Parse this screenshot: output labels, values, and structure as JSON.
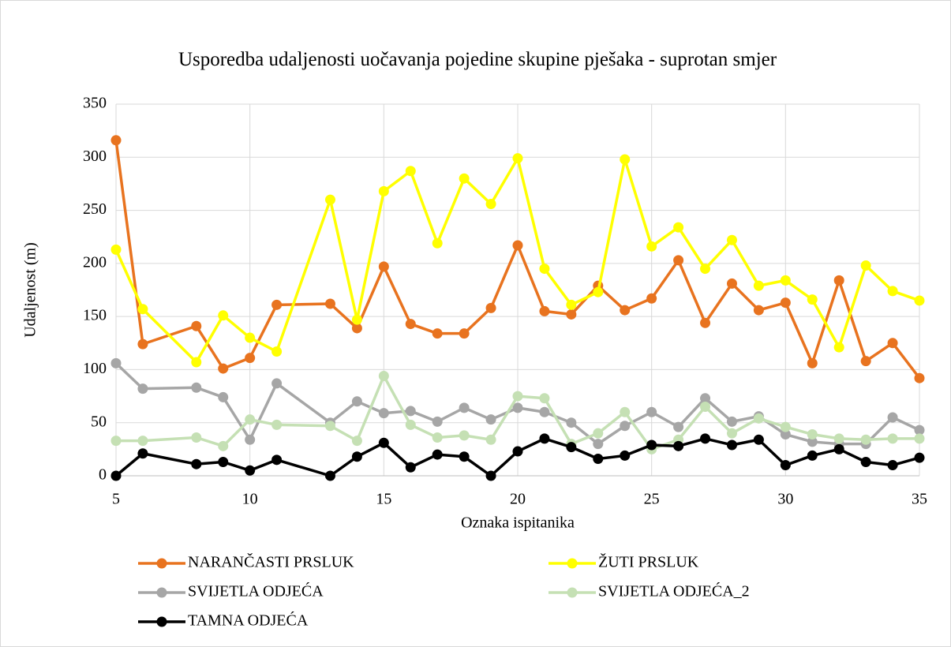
{
  "chart_data": {
    "type": "line",
    "title": "Usporedba udaljenosti uočavanja pojedine skupine pješaka - suprotan smjer",
    "x_label": "Oznaka ispitanika",
    "y_label": "Udaljenost (m)",
    "x": [
      5,
      6,
      8,
      9,
      10,
      11,
      13,
      14,
      15,
      16,
      17,
      18,
      19,
      20,
      21,
      22,
      23,
      24,
      25,
      26,
      27,
      28,
      29,
      30,
      31,
      32,
      33,
      34,
      35
    ],
    "series": [
      {
        "name": "NARANČASTI PRSLUK",
        "color": "#e8731f",
        "values": [
          316,
          124,
          141,
          101,
          111,
          161,
          162,
          139,
          197,
          143,
          134,
          134,
          158,
          217,
          155,
          152,
          179,
          156,
          167,
          203,
          144,
          181,
          156,
          163,
          106,
          184,
          108,
          125,
          92
        ]
      },
      {
        "name": "ŽUTI PRSLUK",
        "color": "#ffff00",
        "values": [
          213,
          157,
          107,
          151,
          130,
          117,
          260,
          147,
          268,
          287,
          219,
          280,
          256,
          299,
          195,
          161,
          173,
          298,
          216,
          234,
          195,
          222,
          179,
          184,
          166,
          121,
          198,
          174,
          165
        ]
      },
      {
        "name": "SVIJETLA ODJEĆA",
        "color": "#a6a6a6",
        "values": [
          106,
          82,
          83,
          74,
          34,
          87,
          50,
          70,
          59,
          61,
          51,
          64,
          53,
          64,
          60,
          50,
          30,
          47,
          60,
          46,
          73,
          51,
          56,
          39,
          32,
          30,
          30,
          55,
          43
        ]
      },
      {
        "name": "SVIJETLA ODJEĆA_2",
        "color": "#c5e0b4",
        "values": [
          33,
          33,
          36,
          28,
          53,
          48,
          47,
          33,
          94,
          48,
          36,
          38,
          34,
          75,
          73,
          30,
          40,
          60,
          25,
          34,
          65,
          40,
          54,
          46,
          39,
          35,
          34,
          35,
          35
        ]
      },
      {
        "name": "TAMNA ODJEĆA",
        "color": "#000000",
        "values": [
          0,
          21,
          11,
          13,
          5,
          15,
          0,
          18,
          31,
          8,
          20,
          18,
          0,
          23,
          35,
          27,
          16,
          19,
          29,
          28,
          35,
          29,
          34,
          10,
          19,
          25,
          13,
          10,
          17
        ]
      }
    ],
    "xlim": [
      5,
      35
    ],
    "xticks": [
      5,
      10,
      15,
      20,
      25,
      30,
      35
    ],
    "ylim": [
      0,
      350
    ],
    "yticks": [
      0,
      50,
      100,
      150,
      200,
      250,
      300,
      350
    ],
    "grid": true
  }
}
